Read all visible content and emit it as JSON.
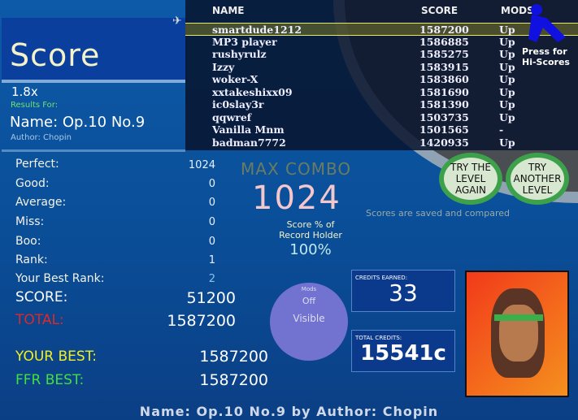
{
  "title": "Score",
  "speed": "1.8x",
  "results_for": "Results For:",
  "song_name": "Name: Op.10 No.9",
  "author": "Author: Chopin",
  "stats": [
    {
      "label": "Perfect:",
      "value": "1024"
    },
    {
      "label": "Good:",
      "value": "0"
    },
    {
      "label": "Average:",
      "value": "0"
    },
    {
      "label": "Miss:",
      "value": "0"
    },
    {
      "label": "Boo:",
      "value": "0"
    },
    {
      "label": "Rank:",
      "value": "1"
    },
    {
      "label": "Your Best Rank:",
      "value": "2"
    }
  ],
  "totals": [
    {
      "label": "SCORE:",
      "value": "51200",
      "color": "#ffffff"
    },
    {
      "label": "TOTAL:",
      "value": "1587200",
      "color": "#e0282a"
    },
    {
      "label": "YOUR BEST:",
      "value": "1587200",
      "color": "#f0f020"
    },
    {
      "label": "FFR BEST:",
      "value": "1587200",
      "color": "#40e040"
    }
  ],
  "max_combo_label": "MAX COMBO",
  "max_combo": "1024",
  "record_label_1": "Score % of",
  "record_label_2": "Record Holder",
  "record_pct": "100%",
  "mods": {
    "label": "Mods",
    "values": [
      "Off",
      "Visible"
    ]
  },
  "credits_earned": {
    "label": "CREDITS EARNED:",
    "value": "33"
  },
  "total_credits": {
    "label": "TOTAL CREDITS:",
    "value": "15541c"
  },
  "leaderboard": {
    "headers": [
      "NAME",
      "SCORE",
      "MODS"
    ],
    "rows": [
      [
        "smartdude1212",
        "1587200",
        "Up"
      ],
      [
        "MP3 player",
        "1586885",
        "Up"
      ],
      [
        "rushyrulz",
        "1585275",
        "Up"
      ],
      [
        "Izzy",
        "1583915",
        "Up"
      ],
      [
        "woker-X",
        "1583860",
        "Up"
      ],
      [
        "xxtakeshixx09",
        "1581690",
        "Up"
      ],
      [
        "ic0slay3r",
        "1581390",
        "Up"
      ],
      [
        "qqwref",
        "1503735",
        "Up"
      ],
      [
        "Vanilla Mnm",
        "1501565",
        "-"
      ],
      [
        "badman7772",
        "1420935",
        "Up"
      ]
    ],
    "note": "Scores are saved and compared"
  },
  "hiscores_button": "Press for Hi-Scores",
  "try_another": "TRY ANOTHER LEVEL",
  "try_again": "TRY THE LEVEL AGAIN",
  "footer": "Name: Op.10 No.9 by Author: Chopin"
}
